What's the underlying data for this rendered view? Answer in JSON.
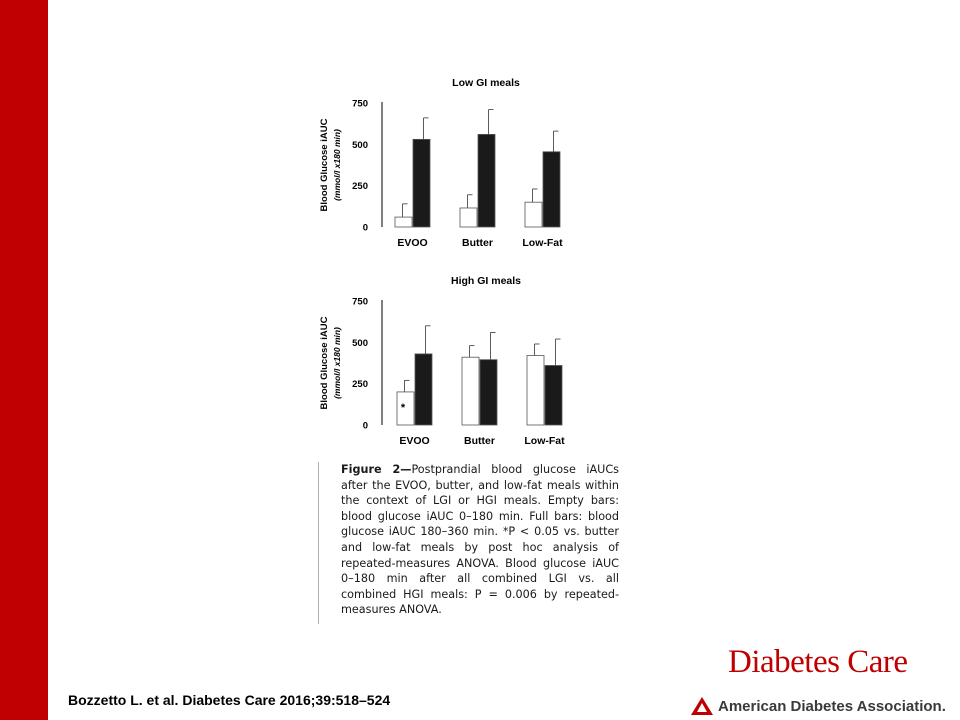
{
  "chart_data": [
    {
      "type": "bar",
      "title": "Low  GI meals",
      "ylabel": "Blood Glucose iAUC",
      "ylabel_unit": "(mmol/l x180 min)",
      "categories": [
        "EVOO",
        "Butter",
        "Low-Fat"
      ],
      "ylim": [
        0,
        750
      ],
      "yticks": [
        0,
        250,
        500,
        750
      ],
      "series": [
        {
          "values": [
            60,
            115,
            150
          ],
          "errors": [
            80,
            80,
            80
          ],
          "color": "#ffffff"
        },
        {
          "values": [
            530,
            560,
            455
          ],
          "errors": [
            130,
            150,
            125
          ],
          "color": "#1a1a1a"
        }
      ],
      "annotations": [],
      "grid": false
    },
    {
      "type": "bar",
      "title": "High GI meals",
      "ylabel": "Blood Glucose iAUC",
      "ylabel_unit": "(mmol/l x180 min)",
      "categories": [
        "EVOO",
        "Butter",
        "Low-Fat"
      ],
      "ylim": [
        0,
        750
      ],
      "yticks": [
        0,
        250,
        500,
        750
      ],
      "series": [
        {
          "values": [
            200,
            410,
            420
          ],
          "errors": [
            70,
            70,
            70
          ],
          "color": "#ffffff"
        },
        {
          "values": [
            430,
            395,
            360
          ],
          "errors": [
            170,
            165,
            160
          ],
          "color": "#1a1a1a"
        }
      ],
      "annotations": [
        {
          "category": "EVOO",
          "series": 0,
          "text": "*"
        }
      ],
      "grid": false
    }
  ],
  "caption": {
    "label": "Figure 2—",
    "text": "Postprandial blood glucose iAUCs after the EVOO, butter, and low-fat meals within the context of LGI or HGI meals. Empty bars: blood glucose iAUC 0–180 min. Full bars: blood glucose iAUC 180–360 min. *P < 0.05 vs. butter and low-fat meals by post hoc analysis of repeated-measures ANOVA. Blood glucose iAUC 0–180 min after all combined LGI vs. all combined HGI meals: P = 0.006 by repeated-measures ANOVA."
  },
  "citation": "Bozzetto L. et al. Diabetes Care 2016;39:518–524",
  "brand": {
    "title": "Diabetes Care",
    "association": "American Diabetes Association.",
    "accent": "#c00000",
    "logo_icon": "ada-triangle-logo"
  }
}
